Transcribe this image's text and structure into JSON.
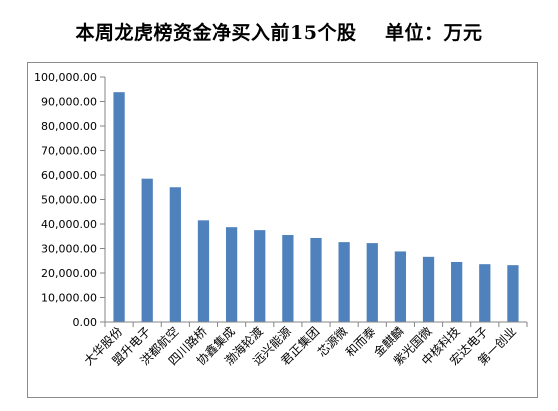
{
  "chart_data": {
    "type": "bar",
    "title": "本周龙虎榜资金净买入前15个股    单位：万元",
    "xlabel": "",
    "ylabel": "",
    "ylim": [
      0,
      100000
    ],
    "y_ticks": [
      0,
      10000,
      20000,
      30000,
      40000,
      50000,
      60000,
      70000,
      80000,
      90000,
      100000
    ],
    "y_tick_labels": [
      "0.00",
      "10,000.00",
      "20,000.00",
      "30,000.00",
      "40,000.00",
      "50,000.00",
      "60,000.00",
      "70,000.00",
      "80,000.00",
      "90,000.00",
      "100,000.00"
    ],
    "grid": false,
    "legend": "none",
    "bar_color": "#4f81bd",
    "categories": [
      "大华股份",
      "盟升电子",
      "洪都航空",
      "四川路桥",
      "协鑫集成",
      "渤海轮渡",
      "远兴能源",
      "君正集团",
      "芯源微",
      "和而泰",
      "金麒麟",
      "紫光国微",
      "中核科技",
      "宏达电子",
      "第一创业"
    ],
    "values": [
      93800,
      58500,
      55000,
      41500,
      38700,
      37500,
      35500,
      34300,
      32600,
      32200,
      28800,
      26600,
      24500,
      23600,
      23200
    ]
  }
}
